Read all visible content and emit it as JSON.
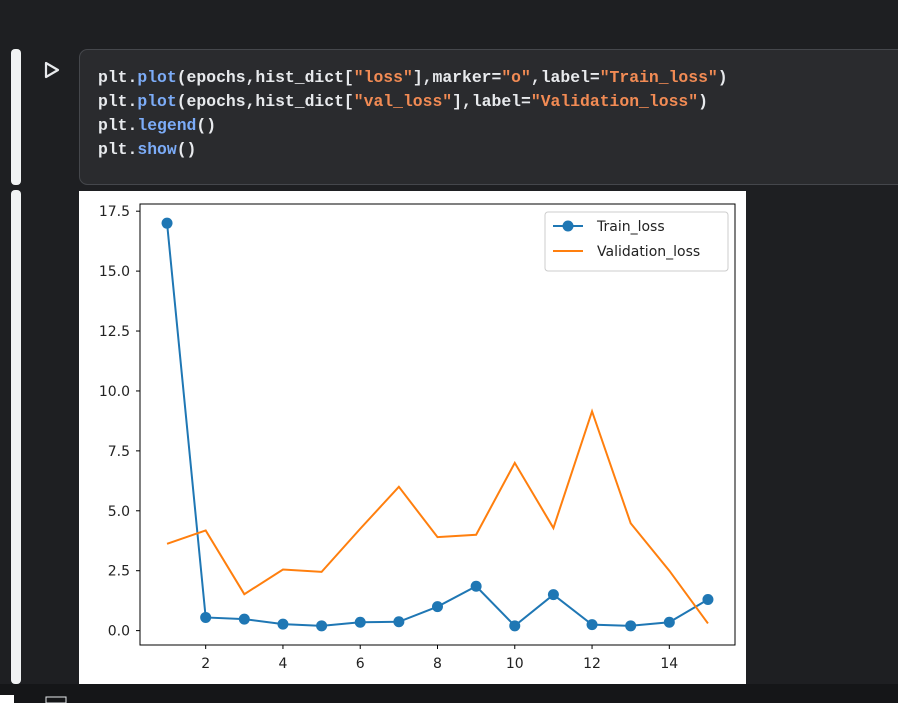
{
  "code": {
    "lines": [
      [
        {
          "text": "plt.",
          "color": "#e8eaed"
        },
        {
          "text": "plot",
          "color": "#7cacf8"
        },
        {
          "text": "(epochs,hist_dict[",
          "color": "#e8eaed"
        },
        {
          "text": "\"loss\"",
          "color": "#f28b54"
        },
        {
          "text": "],marker=",
          "color": "#e8eaed"
        },
        {
          "text": "\"o\"",
          "color": "#f28b54"
        },
        {
          "text": ",label=",
          "color": "#e8eaed"
        },
        {
          "text": "\"Train_loss\"",
          "color": "#f28b54"
        },
        {
          "text": ")",
          "color": "#e8eaed"
        }
      ],
      [
        {
          "text": "plt.",
          "color": "#e8eaed"
        },
        {
          "text": "plot",
          "color": "#7cacf8"
        },
        {
          "text": "(epochs,hist_dict[",
          "color": "#e8eaed"
        },
        {
          "text": "\"val_loss\"",
          "color": "#f28b54"
        },
        {
          "text": "],label=",
          "color": "#e8eaed"
        },
        {
          "text": "\"Validation_loss\"",
          "color": "#f28b54"
        },
        {
          "text": ")",
          "color": "#e8eaed"
        }
      ],
      [
        {
          "text": "plt.",
          "color": "#e8eaed"
        },
        {
          "text": "legend",
          "color": "#7cacf8"
        },
        {
          "text": "()",
          "color": "#e8eaed"
        }
      ],
      [
        {
          "text": "plt.",
          "color": "#e8eaed"
        },
        {
          "text": "show",
          "color": "#7cacf8"
        },
        {
          "text": "()",
          "color": "#e8eaed"
        }
      ]
    ]
  },
  "chart_data": {
    "type": "line",
    "x": [
      1,
      2,
      3,
      4,
      5,
      6,
      7,
      8,
      9,
      10,
      11,
      12,
      13,
      14,
      15
    ],
    "series": [
      {
        "name": "Train_loss",
        "color": "#1f77b4",
        "marker": "o",
        "values": [
          17.0,
          0.55,
          0.48,
          0.27,
          0.2,
          0.35,
          0.37,
          1.0,
          1.85,
          0.2,
          1.5,
          0.25,
          0.2,
          0.35,
          1.3
        ]
      },
      {
        "name": "Validation_loss",
        "color": "#ff7f0e",
        "values": [
          3.62,
          4.18,
          1.52,
          2.55,
          2.45,
          4.25,
          6.0,
          3.9,
          4.0,
          7.0,
          4.28,
          9.15,
          4.48,
          2.5,
          0.3
        ]
      }
    ],
    "xlim": [
      0.3,
      15.7
    ],
    "ylim": [
      -0.6,
      17.8
    ],
    "xticks": [
      2,
      4,
      6,
      8,
      10,
      12,
      14
    ],
    "yticks": [
      {
        "value": 0,
        "label": "0.0"
      },
      2.5,
      {
        "value": 5,
        "label": "5.0"
      },
      7.5,
      {
        "value": 10,
        "label": "10.0"
      },
      12.5,
      {
        "value": 15,
        "label": "15.0"
      },
      17.5
    ],
    "legend": "upper right"
  }
}
